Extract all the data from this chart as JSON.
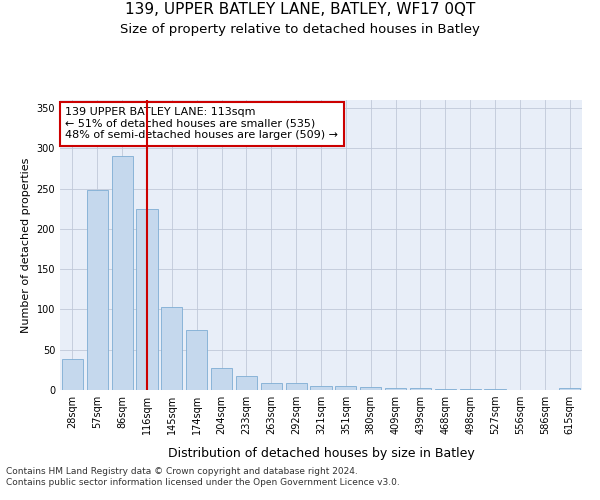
{
  "title": "139, UPPER BATLEY LANE, BATLEY, WF17 0QT",
  "subtitle": "Size of property relative to detached houses in Batley",
  "xlabel": "Distribution of detached houses by size in Batley",
  "ylabel": "Number of detached properties",
  "bar_labels": [
    "28sqm",
    "57sqm",
    "86sqm",
    "116sqm",
    "145sqm",
    "174sqm",
    "204sqm",
    "233sqm",
    "263sqm",
    "292sqm",
    "321sqm",
    "351sqm",
    "380sqm",
    "409sqm",
    "439sqm",
    "468sqm",
    "498sqm",
    "527sqm",
    "556sqm",
    "586sqm",
    "615sqm"
  ],
  "bar_values": [
    38,
    248,
    291,
    225,
    103,
    75,
    27,
    18,
    9,
    9,
    5,
    5,
    4,
    3,
    2,
    1,
    1,
    1,
    0,
    0,
    3
  ],
  "bar_color": "#c5d8ed",
  "bar_edge_color": "#7eadd4",
  "vline_x": 3,
  "vline_color": "#cc0000",
  "annotation_text": "139 UPPER BATLEY LANE: 113sqm\n← 51% of detached houses are smaller (535)\n48% of semi-detached houses are larger (509) →",
  "annotation_box_color": "#ffffff",
  "annotation_box_edge_color": "#cc0000",
  "ylim": [
    0,
    360
  ],
  "yticks": [
    0,
    50,
    100,
    150,
    200,
    250,
    300,
    350
  ],
  "grid_color": "#c0c8d8",
  "bg_color": "#e8eef8",
  "footnote": "Contains HM Land Registry data © Crown copyright and database right 2024.\nContains public sector information licensed under the Open Government Licence v3.0.",
  "title_fontsize": 11,
  "subtitle_fontsize": 9.5,
  "xlabel_fontsize": 9,
  "ylabel_fontsize": 8,
  "tick_fontsize": 7,
  "annot_fontsize": 8,
  "footnote_fontsize": 6.5
}
